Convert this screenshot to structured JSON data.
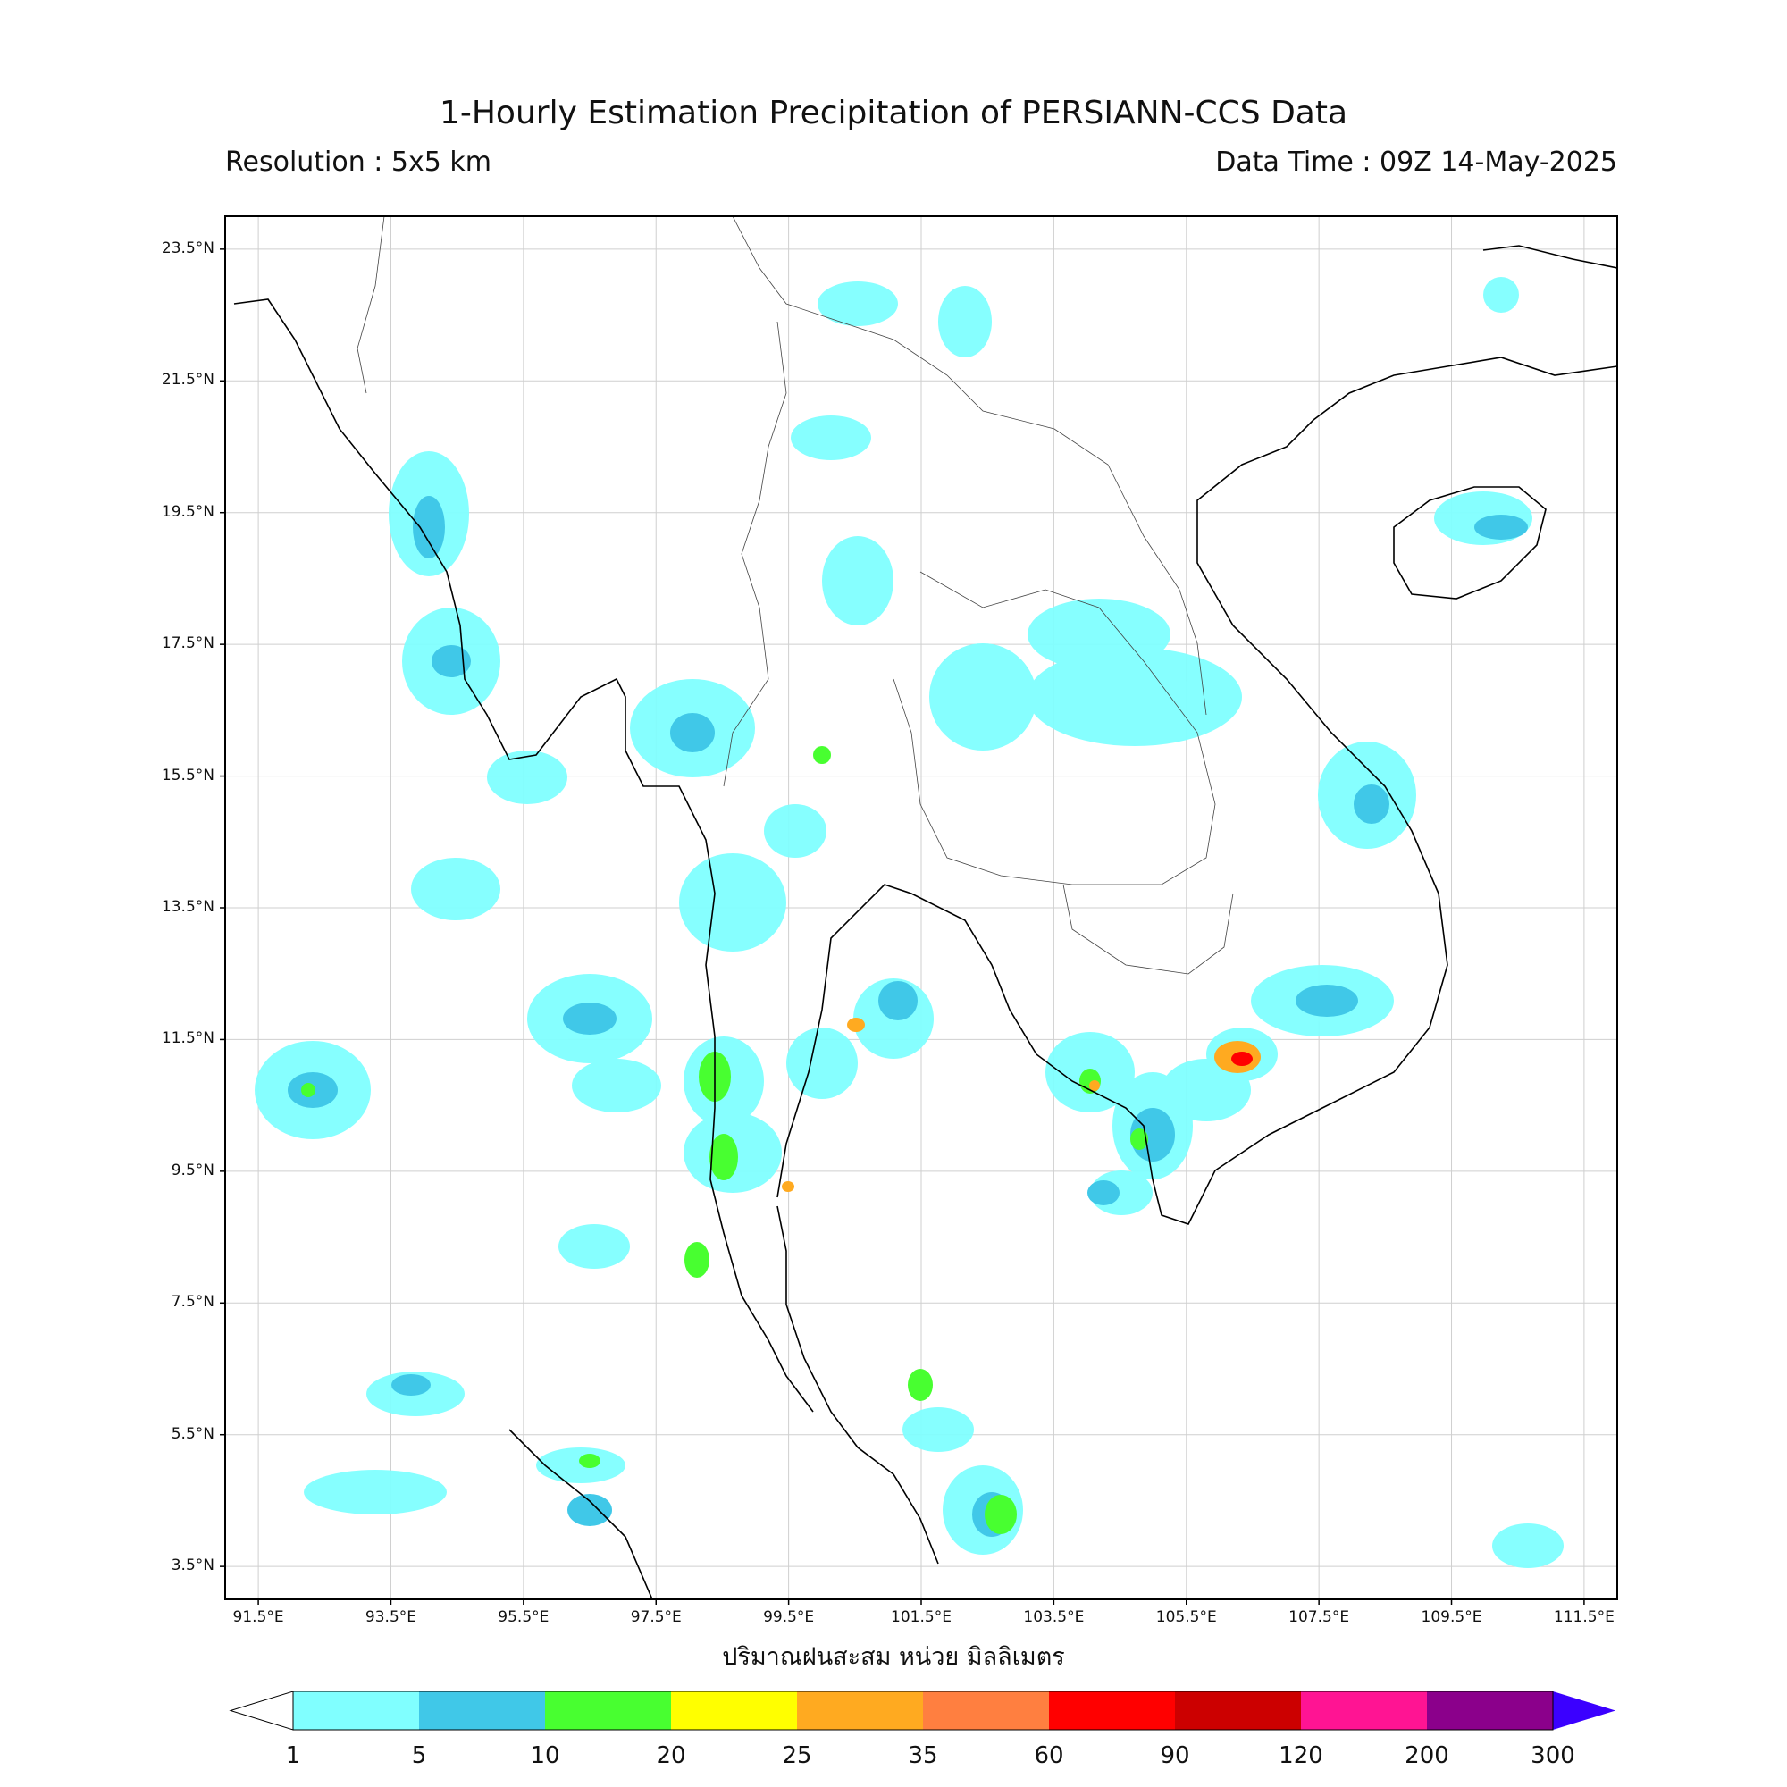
{
  "header": {
    "title": "1-Hourly Estimation Precipitation of PERSIANN-CCS Data",
    "resolution": "Resolution : 5x5 km",
    "data_time": "Data Time : 09Z 14-May-2025"
  },
  "map": {
    "region": "Mainland Southeast Asia (Thailand, Myanmar, Laos, Cambodia, Vietnam, Malay Peninsula)",
    "lon_range": [
      91.0,
      112.0
    ],
    "lat_range": [
      3.0,
      24.0
    ],
    "lat_ticks": [
      "23.5°N",
      "21.5°N",
      "19.5°N",
      "17.5°N",
      "15.5°N",
      "13.5°N",
      "11.5°N",
      "9.5°N",
      "7.5°N",
      "5.5°N",
      "3.5°N"
    ],
    "lon_ticks": [
      "91.5°E",
      "93.5°E",
      "95.5°E",
      "97.5°E",
      "99.5°E",
      "101.5°E",
      "103.5°E",
      "105.5°E",
      "107.5°E",
      "109.5°E",
      "111.5°E"
    ],
    "grid": true
  },
  "colorbar": {
    "unit_label": "ปริมาณฝนสะสม หน่วย มิลลิเมตร",
    "levels": [
      "1",
      "5",
      "10",
      "20",
      "25",
      "35",
      "60",
      "90",
      "120",
      "200",
      "300"
    ],
    "colors": [
      "#80ffff",
      "#40c8e8",
      "#48ff30",
      "#ffff00",
      "#ffaa20",
      "#ff7f40",
      "#ff0000",
      "#cc0000",
      "#ff1493",
      "#8b008b",
      "#3b00ff"
    ],
    "under_color": "#ffffff"
  }
}
